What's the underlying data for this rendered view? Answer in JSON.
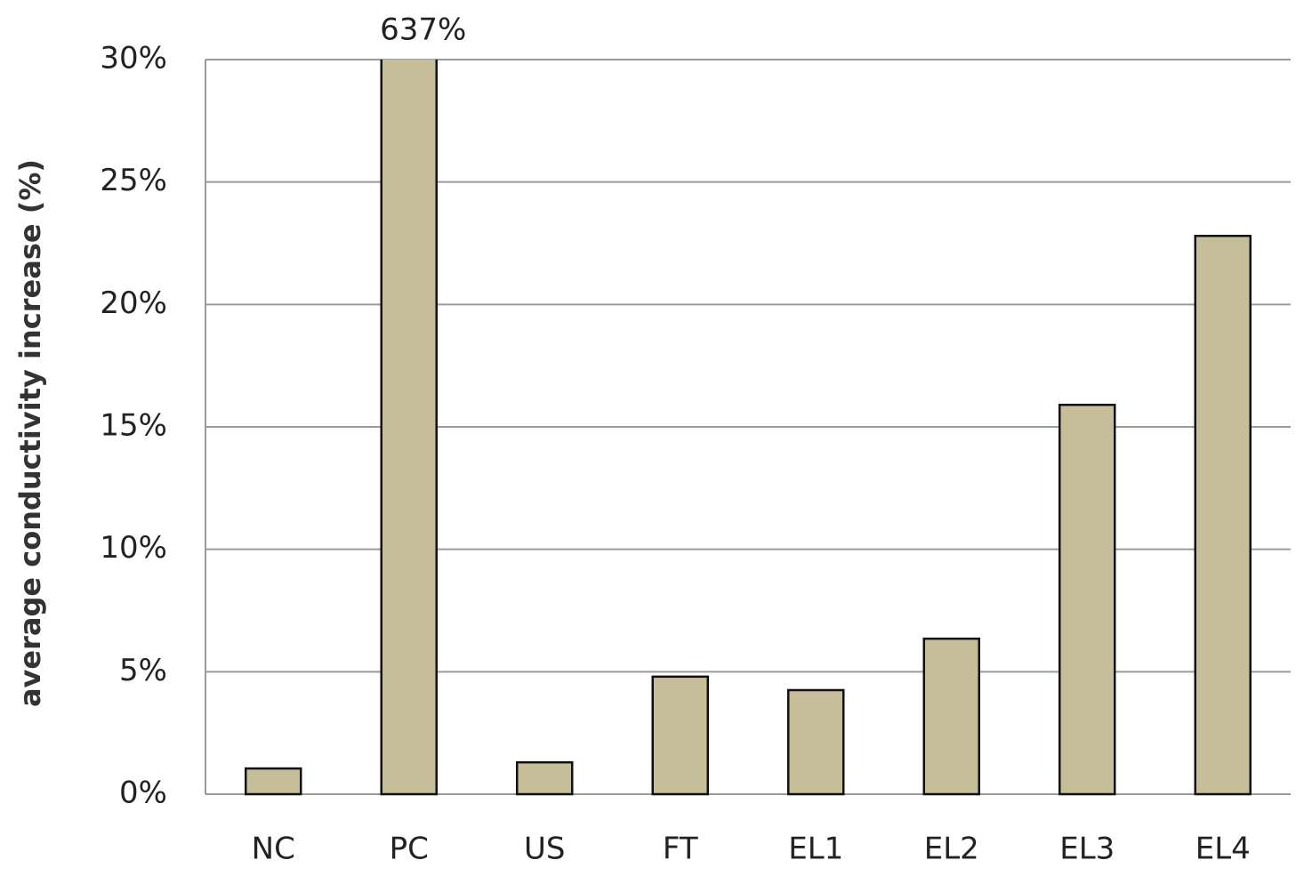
{
  "chart_data": {
    "type": "bar",
    "y_label": "average conductivity increase (%)",
    "categories": [
      "NC",
      "PC",
      "US",
      "FT",
      "EL1",
      "EL2",
      "EL3",
      "EL4"
    ],
    "values": [
      1.05,
      637,
      1.3,
      4.8,
      4.25,
      6.35,
      15.9,
      22.8
    ],
    "value_labels": [
      null,
      "637%",
      null,
      null,
      null,
      null,
      null,
      null
    ],
    "color": "#c6be98",
    "ylim": [
      0,
      30
    ],
    "yticks": [
      {
        "value": 0,
        "label": "0%"
      },
      {
        "value": 5,
        "label": "5%"
      },
      {
        "value": 10,
        "label": "10%"
      },
      {
        "value": 15,
        "label": "15%"
      },
      {
        "value": 20,
        "label": "20%"
      },
      {
        "value": 25,
        "label": "25%"
      },
      {
        "value": 30,
        "label": "30%"
      }
    ],
    "grid": true
  }
}
